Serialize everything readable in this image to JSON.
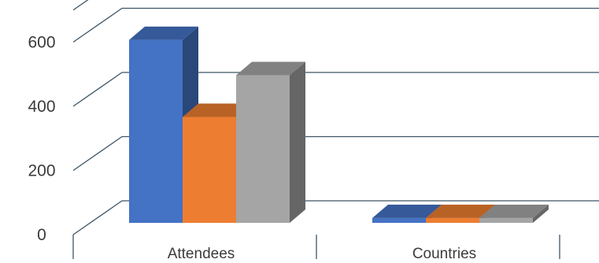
{
  "chart_data": {
    "type": "bar",
    "style": "3d-clustered-column",
    "categories": [
      "Attendees",
      "Countries"
    ],
    "series": [
      {
        "values": [
          570,
          15
        ],
        "color": "#4472C4"
      },
      {
        "values": [
          330,
          15
        ],
        "color": "#ED7D31"
      },
      {
        "values": [
          460,
          15
        ],
        "color": "#A5A5A5"
      }
    ],
    "y_ticks": [
      "0",
      "200",
      "400",
      "600"
    ],
    "ylim": [
      0,
      700
    ],
    "grid": true,
    "legend": "none"
  }
}
